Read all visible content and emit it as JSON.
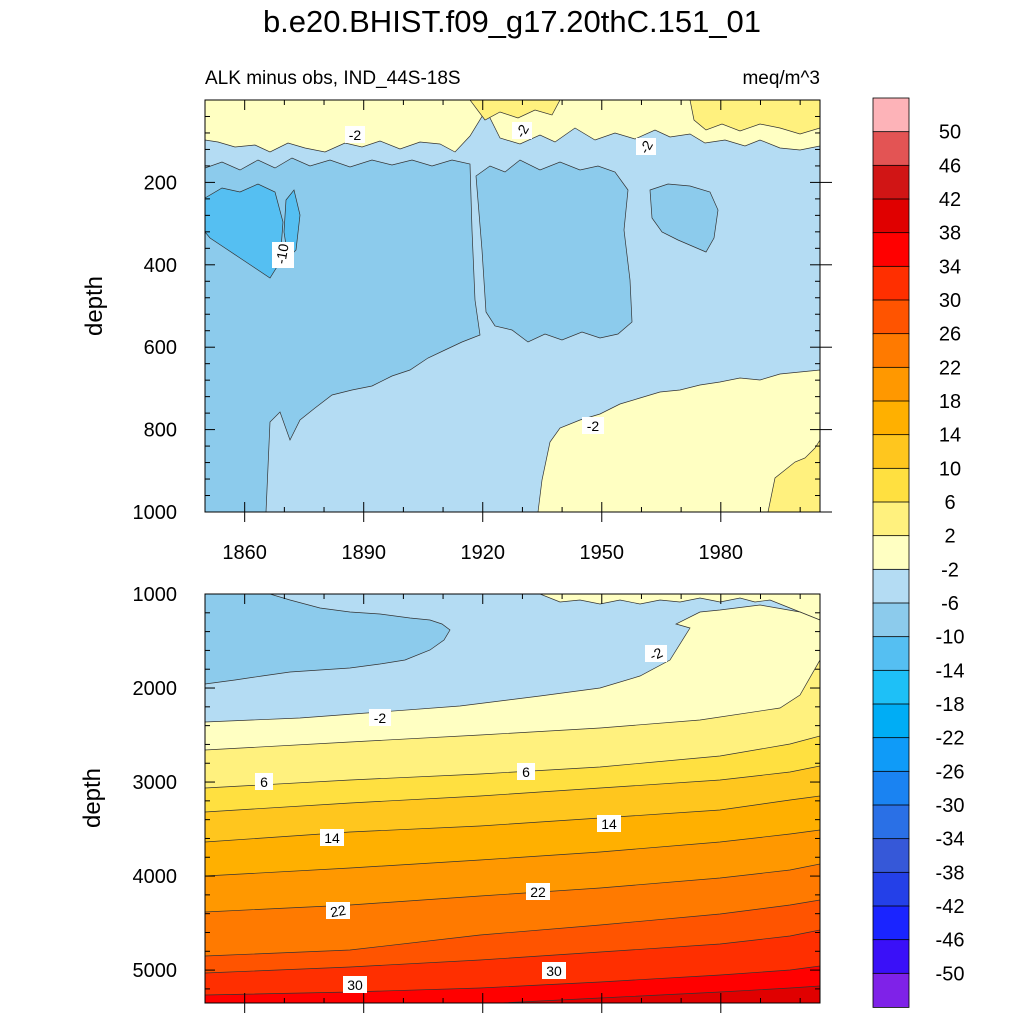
{
  "title": "b.e20.BHIST.f09_g17.20thC.151_01",
  "colors": {
    "frame": "#000000",
    "contour_line": "#333333",
    "label_bg": "#ffffff"
  },
  "chart_data": [
    {
      "type": "heatmap",
      "panel": "upper",
      "title_left": "ALK minus obs, IND_44S-18S",
      "title_right": "meq/m^3",
      "ylabel": "depth",
      "xlabel": "",
      "xlim": [
        1850,
        2005
      ],
      "ylim": [
        0,
        1000
      ],
      "y_reversed": true,
      "x_ticks": [
        "1860",
        "1890",
        "1920",
        "1950",
        "1980"
      ],
      "y_ticks": [
        "200",
        "400",
        "600",
        "800",
        "1000"
      ],
      "contour_labels": [
        "-2",
        "-2",
        "-2",
        "-10",
        "-2"
      ],
      "regions": [
        {
          "level_upper": 2,
          "level_lower": -2,
          "description_of_values": "near surface above ~150 m and deep below ~700 m after 1935"
        },
        {
          "level_upper": -2,
          "level_lower": -6,
          "description_of_values": "150-1000 m broad region"
        },
        {
          "level_upper": -6,
          "level_lower": -10,
          "description_of_values": "1850-1915 below 150 m and 1925-1960 at 150-550 m"
        },
        {
          "level_upper": -10,
          "level_lower": -14,
          "description_of_values": "1850-1870 at 200-400 m"
        },
        {
          "level_upper": 6,
          "level_lower": 2,
          "description_of_values": "surface patches and deep 1993-2005"
        }
      ]
    },
    {
      "type": "heatmap",
      "panel": "lower",
      "title_left": "",
      "title_right": "",
      "ylabel": "depth",
      "xlabel": "",
      "xlim": [
        1850,
        2005
      ],
      "ylim": [
        1000,
        5350
      ],
      "y_reversed": true,
      "y_ticks": [
        "1000",
        "2000",
        "3000",
        "4000",
        "5000"
      ],
      "contour_labels": [
        "-2",
        "-2",
        "6",
        "6",
        "14",
        "14",
        "22",
        "22",
        "30",
        "30"
      ],
      "levels_by_depth_1850": [
        {
          "depth": 1900,
          "value": -6
        },
        {
          "depth": 2400,
          "value": -2
        },
        {
          "depth": 2620,
          "value": 2
        },
        {
          "depth": 2870,
          "value": 6
        },
        {
          "depth": 3080,
          "value": 10
        },
        {
          "depth": 3350,
          "value": 14
        },
        {
          "depth": 3660,
          "value": 18
        },
        {
          "depth": 4040,
          "value": 22
        },
        {
          "depth": 4550,
          "value": 26
        },
        {
          "depth": 5050,
          "value": 30
        },
        {
          "depth": 5290,
          "value": 34
        }
      ]
    }
  ],
  "colorbar": {
    "labels": [
      "50",
      "46",
      "42",
      "38",
      "34",
      "30",
      "26",
      "22",
      "18",
      "14",
      "10",
      "6",
      "2",
      "-2",
      "-6",
      "-10",
      "-14",
      "-18",
      "-22",
      "-26",
      "-30",
      "-34",
      "-38",
      "-42",
      "-46",
      "-50"
    ],
    "bin_colors": [
      "#fdb3b8",
      "#e35454",
      "#d11515",
      "#e00000",
      "#ff0000",
      "#ff2f00",
      "#ff5400",
      "#ff7a00",
      "#ff9800",
      "#ffb000",
      "#ffc61e",
      "#ffe040",
      "#fff17e",
      "#ffffc2",
      "#b4dcf3",
      "#8ccbec",
      "#55bff2",
      "#1ec0f7",
      "#00adf5",
      "#0f9bf8",
      "#1a83f2",
      "#2a70e6",
      "#3658d8",
      "#2440e8",
      "#1a24ff",
      "#3a10f8",
      "#7f22e8"
    ]
  }
}
